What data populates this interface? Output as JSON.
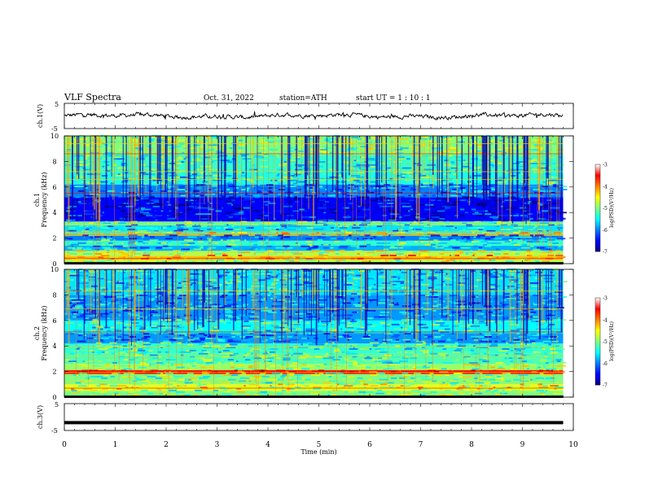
{
  "header": {
    "title": "VLF  Spectra",
    "date": "Oct. 31, 2022",
    "station": "station=ATH",
    "start": "start  UT  =   1  : 10 : 1"
  },
  "chart_data": [
    {
      "type": "line",
      "panel": "ch1-waveform",
      "ylabel": "ch.1(V)",
      "ytick_labels": [
        "5",
        "-5"
      ],
      "ylim": [
        -5,
        5
      ],
      "xlim": [
        0,
        10
      ],
      "note": "noisy waveform roughly around 0 V, ending near 9.8 min"
    },
    {
      "type": "heatmap",
      "panel": "ch1-spectrogram",
      "ylabel_top": "ch.1",
      "ylabel": "Frequency (kHz)",
      "yticks": [
        0,
        2,
        4,
        6,
        8,
        10
      ],
      "ylim": [
        0,
        10
      ],
      "xlim": [
        0,
        10
      ],
      "data_end_min": 9.8,
      "colorbar": {
        "label": "log(PSD)(V²/Hz)",
        "ticks": [
          -3,
          -4,
          -5,
          -6,
          -7
        ],
        "range": [
          -7,
          -3
        ]
      },
      "bands_kHz_logPSD": [
        {
          "f0": 0.0,
          "f1": 0.1,
          "v": -7
        },
        {
          "f0": 0.1,
          "f1": 0.3,
          "v": -4.8
        },
        {
          "f0": 0.3,
          "f1": 0.6,
          "v": -4.2
        },
        {
          "f0": 0.6,
          "f1": 1.0,
          "v": -4.8
        },
        {
          "f0": 1.0,
          "f1": 1.4,
          "v": -5.8
        },
        {
          "f0": 1.4,
          "f1": 1.8,
          "v": -5.3
        },
        {
          "f0": 1.8,
          "f1": 2.2,
          "v": -6.0
        },
        {
          "f0": 2.2,
          "f1": 2.4,
          "v": -4.6
        },
        {
          "f0": 2.4,
          "f1": 3.0,
          "v": -5.6
        },
        {
          "f0": 3.0,
          "f1": 3.3,
          "v": -5.1
        },
        {
          "f0": 3.3,
          "f1": 5.2,
          "v": -6.5
        },
        {
          "f0": 5.2,
          "f1": 6.2,
          "v": -6.0
        },
        {
          "f0": 6.2,
          "f1": 7.2,
          "v": -5.4
        },
        {
          "f0": 7.2,
          "f1": 8.5,
          "v": -5.3
        },
        {
          "f0": 8.5,
          "f1": 10.0,
          "v": -5.0
        }
      ]
    },
    {
      "type": "heatmap",
      "panel": "ch2-spectrogram",
      "ylabel_top": "ch.2",
      "ylabel": "Frequency (kHz)",
      "yticks": [
        0,
        2,
        4,
        6,
        8,
        10
      ],
      "ylim": [
        0,
        10
      ],
      "xlim": [
        0,
        10
      ],
      "data_end_min": 9.8,
      "colorbar": {
        "label": "log(PSD)(V²/Hz)",
        "ticks": [
          -3,
          -4,
          -5,
          -6,
          -7
        ],
        "range": [
          -7,
          -3
        ]
      },
      "bands_kHz_logPSD": [
        {
          "f0": 0.0,
          "f1": 0.1,
          "v": -7
        },
        {
          "f0": 0.1,
          "f1": 0.5,
          "v": -5.0
        },
        {
          "f0": 0.5,
          "f1": 1.0,
          "v": -4.6
        },
        {
          "f0": 1.0,
          "f1": 1.8,
          "v": -5.0
        },
        {
          "f0": 1.8,
          "f1": 2.1,
          "v": -3.6
        },
        {
          "f0": 2.1,
          "f1": 2.6,
          "v": -4.9
        },
        {
          "f0": 2.6,
          "f1": 3.4,
          "v": -5.2
        },
        {
          "f0": 3.4,
          "f1": 4.2,
          "v": -5.3
        },
        {
          "f0": 4.2,
          "f1": 5.0,
          "v": -5.9
        },
        {
          "f0": 5.0,
          "f1": 6.0,
          "v": -5.5
        },
        {
          "f0": 6.0,
          "f1": 8.0,
          "v": -5.9
        },
        {
          "f0": 8.0,
          "f1": 10.0,
          "v": -5.6
        }
      ]
    },
    {
      "type": "line",
      "panel": "ch3-waveform",
      "ylabel": "ch.3(V)",
      "ytick_labels": [
        "5",
        "-5"
      ],
      "ylim": [
        -5,
        5
      ],
      "xlim": [
        0,
        10
      ],
      "note": "flat thick line near -2 V"
    }
  ],
  "xaxis": {
    "label": "Time  (min)",
    "ticks": [
      "0",
      "1",
      "2",
      "3",
      "4",
      "5",
      "6",
      "7",
      "8",
      "9",
      "10"
    ]
  }
}
